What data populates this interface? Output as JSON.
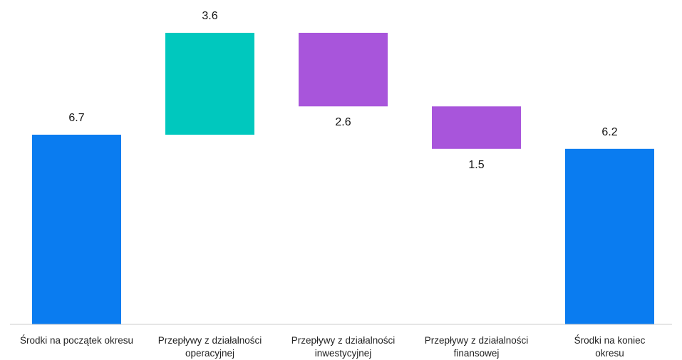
{
  "chart_data": {
    "type": "waterfall",
    "title": "",
    "xlabel": "",
    "ylabel": "",
    "ylim": [
      0,
      10.3
    ],
    "grid": false,
    "legend": "none",
    "categories": [
      "Środki na początek okresu",
      "Przepływy z działalności operacyjnej",
      "Przepływy z działalności inwestycyjnej",
      "Przepływy z działalności finansowej",
      "Środki na koniec okresu"
    ],
    "category_lines": [
      [
        "Środki na początek okresu"
      ],
      [
        "Przepływy z działalności",
        "operacyjnej"
      ],
      [
        "Przepływy z działalności",
        "inwestycyjnej"
      ],
      [
        "Przepływy z działalności",
        "finansowej"
      ],
      [
        "Środki na koniec",
        "okresu"
      ]
    ],
    "bars": [
      {
        "kind": "total",
        "value": 6.7,
        "start": 0,
        "end": 6.7,
        "label": "6.7"
      },
      {
        "kind": "increase",
        "value": 3.6,
        "start": 6.7,
        "end": 10.3,
        "label": "3.6"
      },
      {
        "kind": "decrease",
        "value": -2.6,
        "start": 10.3,
        "end": 7.7,
        "label": "2.6"
      },
      {
        "kind": "decrease",
        "value": -1.5,
        "start": 7.7,
        "end": 6.2,
        "label": "1.5"
      },
      {
        "kind": "total",
        "value": 6.2,
        "start": 0,
        "end": 6.2,
        "label": "6.2"
      }
    ],
    "colors": {
      "total": "#0a7cf0",
      "increase": "#00c8be",
      "decrease": "#a855db",
      "axis": "#cccccc",
      "text": "#111111"
    }
  }
}
